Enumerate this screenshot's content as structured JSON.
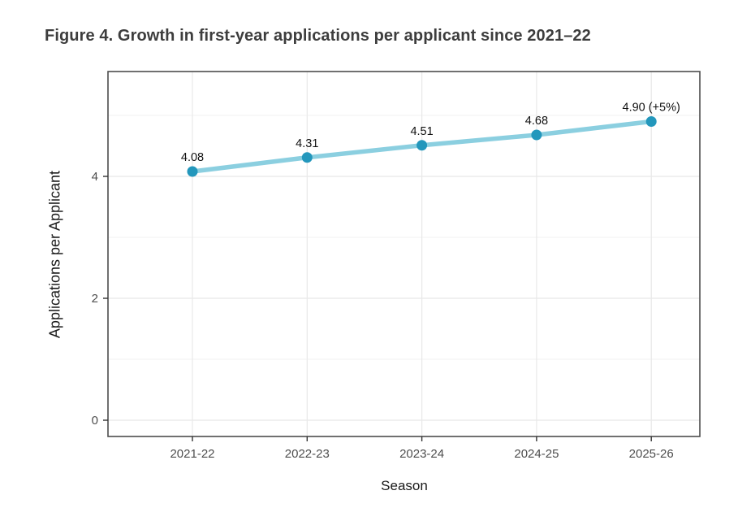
{
  "figure_title": "Figure 4. Growth in first-year applications per applicant since 2021–22",
  "chart_data": {
    "type": "line",
    "title": "Figure 4. Growth in first-year applications per applicant since 2021–22",
    "xlabel": "Season",
    "ylabel": "Applications per Applicant",
    "categories": [
      "2021-22",
      "2022-23",
      "2023-24",
      "2024-25",
      "2025-26"
    ],
    "series": [
      {
        "name": "Applications per Applicant",
        "values": [
          4.08,
          4.31,
          4.51,
          4.68,
          4.9
        ]
      }
    ],
    "point_labels": [
      "4.08",
      "4.31",
      "4.51",
      "4.68",
      "4.90 (+5%)"
    ],
    "y_ticks": [
      0,
      2,
      4
    ],
    "y_minor_ticks": [
      1,
      3,
      5
    ],
    "ylim": [
      -0.32,
      5.75
    ],
    "grid": "on",
    "legend_position": "none",
    "colors": {
      "line": "#8bcfe0",
      "point": "#2397bc",
      "grid_major": "#e8e8e8",
      "grid_minor": "#f2f2f2",
      "panel_border": "#4d4d4d",
      "panel_bg": "#ffffff",
      "tick_mark": "#333333",
      "tick_label": "#4d4d4d",
      "axis_title": "#1a1a1a",
      "data_label": "#111111",
      "title": "#3d3d3d"
    }
  }
}
